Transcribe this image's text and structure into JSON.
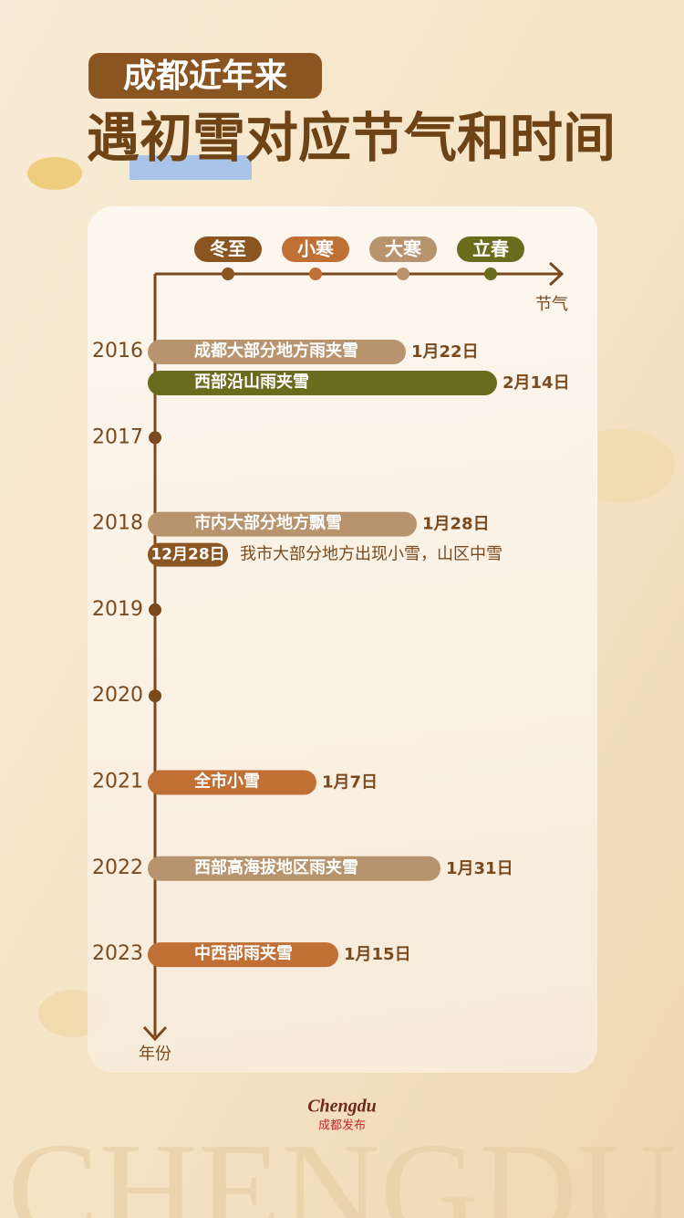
{
  "header": {
    "tag": "成都近年来",
    "title": "遇初雪对应节气和时间"
  },
  "solar_terms": [
    {
      "label": "冬至",
      "color": "#8a5520"
    },
    {
      "label": "小寒",
      "color": "#c07035"
    },
    {
      "label": "大寒",
      "color": "#b8946e"
    },
    {
      "label": "立春",
      "color": "#6b6b1e"
    }
  ],
  "x_axis_label": "节气",
  "y_axis_label": "年份",
  "years": [
    {
      "year": "2016",
      "events": [
        {
          "text": "成都大部分地方雨夹雪",
          "date": "1月22日",
          "color": "#b8946e"
        },
        {
          "text": "西部沿山雨夹雪",
          "date": "2月14日",
          "color": "#6b6b1e"
        }
      ]
    },
    {
      "year": "2017",
      "events": []
    },
    {
      "year": "2018",
      "events": [
        {
          "text": "市内大部分地方飘雪",
          "date": "1月28日",
          "color": "#b8946e"
        },
        {
          "badge": "12月28日",
          "text": "我市大部分地方出现小雪，山区中雪",
          "color": "#8a5520"
        }
      ]
    },
    {
      "year": "2019",
      "events": []
    },
    {
      "year": "2020",
      "events": []
    },
    {
      "year": "2021",
      "events": [
        {
          "text": "全市小雪",
          "date": "1月7日",
          "color": "#c07035"
        }
      ]
    },
    {
      "year": "2022",
      "events": [
        {
          "text": "西部高海拔地区雨夹雪",
          "date": "1月31日",
          "color": "#b8946e"
        }
      ]
    },
    {
      "year": "2023",
      "events": [
        {
          "text": "中西部雨夹雪",
          "date": "1月15日",
          "color": "#c07035"
        }
      ]
    }
  ],
  "footer": {
    "logo_top": "Chengdu",
    "logo_bottom": "成都发布",
    "watermark": "CHENGDU"
  }
}
